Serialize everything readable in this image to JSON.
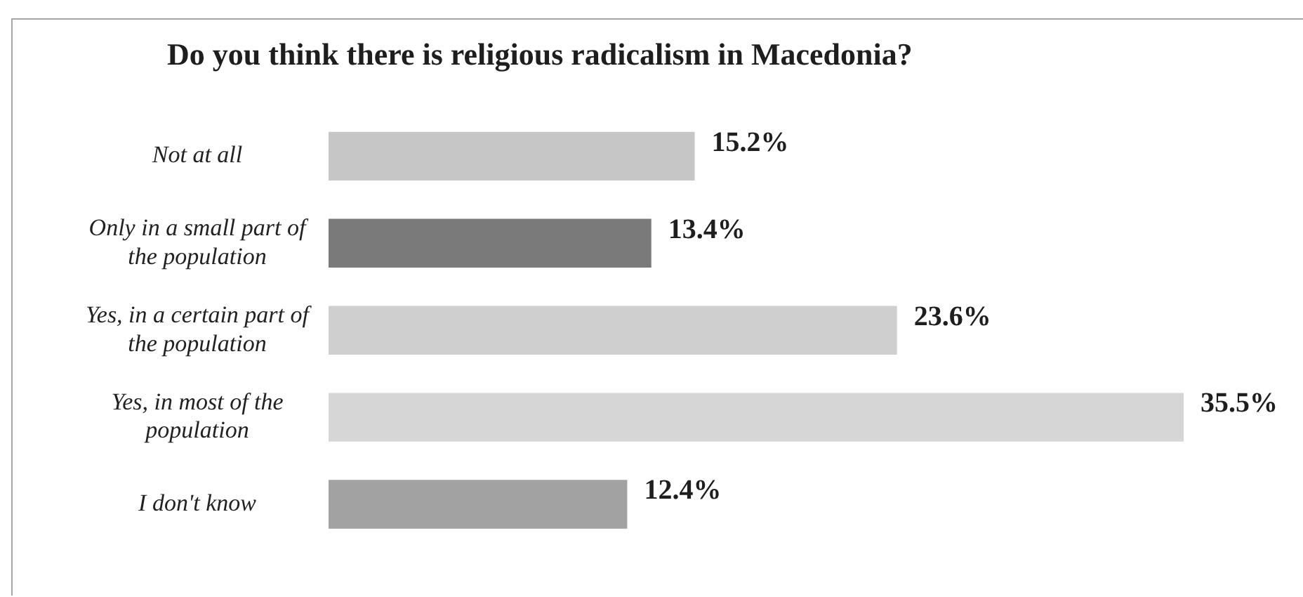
{
  "chart_data": {
    "type": "bar",
    "orientation": "horizontal",
    "title": "Do you think there is religious radicalism in Macedonia?",
    "categories": [
      "Not at all",
      "Only in a small part of the population",
      "Yes, in a certain part of the population",
      "Yes, in most of the population",
      "I don't know"
    ],
    "values": [
      15.2,
      13.4,
      23.6,
      35.5,
      12.4
    ],
    "value_labels": [
      "15.2%",
      "13.4%",
      "23.6%",
      "35.5%",
      "12.4%"
    ],
    "colors": [
      "#c6c6c6",
      "#7a7a7a",
      "#cfcfcf",
      "#d6d6d6",
      "#a2a2a2"
    ],
    "tick_labels": "y"
  }
}
